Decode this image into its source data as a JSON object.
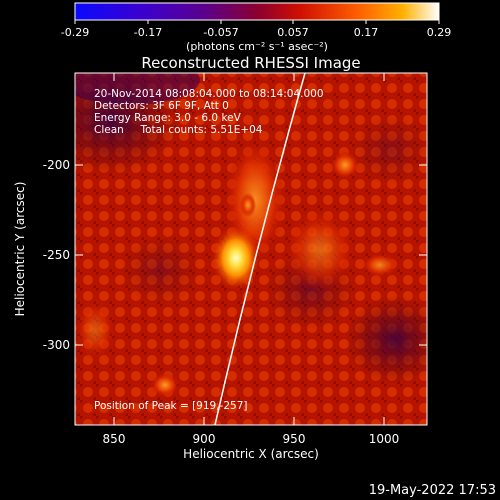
{
  "colorbar": {
    "tick_labels": [
      "-0.29",
      "-0.17",
      "-0.057",
      "0.057",
      "0.17",
      "0.29"
    ],
    "unit_label": "(photons cm⁻² s⁻¹ asec⁻²)",
    "range": [
      -0.29,
      0.29
    ]
  },
  "plot": {
    "title": "Reconstructed RHESSI Image",
    "info_lines": [
      "20-Nov-2014 08:08:04.000 to 08:14:04.000",
      "Detectors: 3F 6F 9F, Att 0",
      "Energy Range: 3.0 - 6.0 keV",
      "Clean     Total counts: 5.51E+04"
    ],
    "peak_label": "Position of Peak = [919,-257]",
    "xlabel": "Heliocentric X (arcsec)",
    "ylabel": "Heliocentric Y (arcsec)",
    "x_ticks": [
      "850",
      "900",
      "950",
      "1000"
    ],
    "y_ticks": [
      "-200",
      "-250",
      "-300"
    ]
  },
  "footer": {
    "timestamp": "19-May-2022 17:53"
  },
  "colors": {
    "background": "#000000",
    "limb": "#ffffff"
  }
}
